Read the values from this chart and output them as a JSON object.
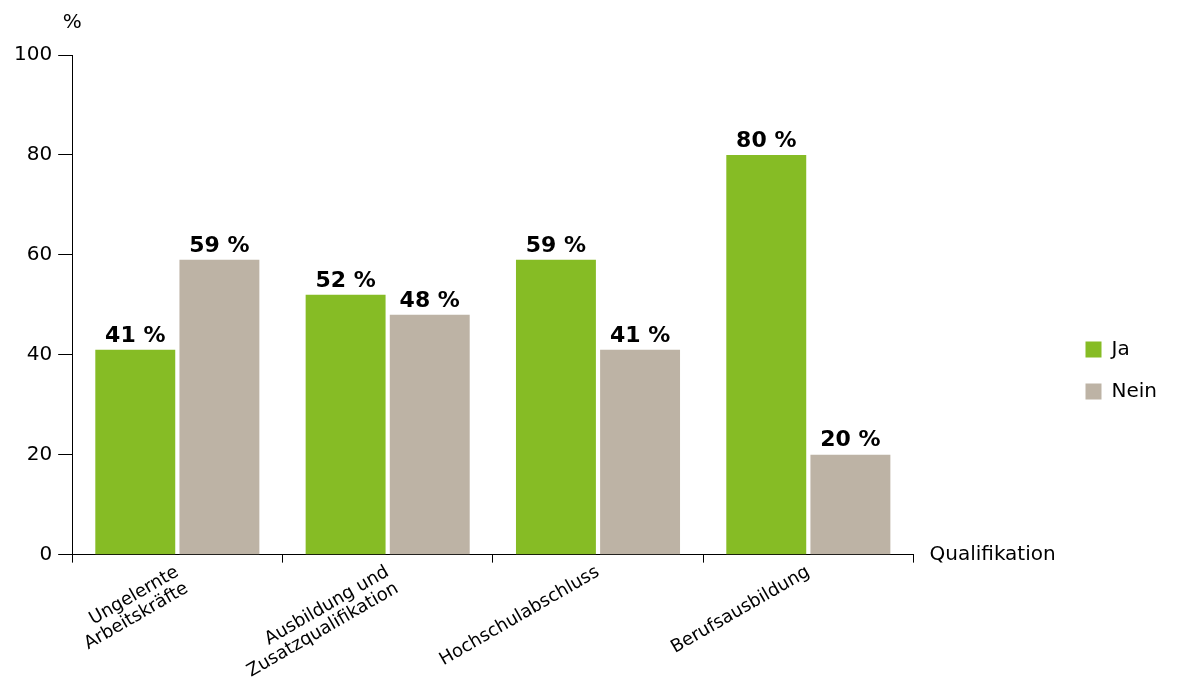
{
  "chart_data": {
    "type": "bar",
    "ylabel": "%",
    "xlabel": "Qualifikation",
    "categories": [
      "Ungelernte\nArbeitskräfte",
      "Ausbildung und\nZusatzqualifikation",
      "Hochschulabschluss",
      "Berufsausbildung"
    ],
    "series": [
      {
        "name": "Ja",
        "color": "#86bc25",
        "values": [
          41,
          52,
          59,
          80
        ],
        "value_labels": [
          "41 %",
          "52 %",
          "59 %",
          "80 %"
        ]
      },
      {
        "name": "Nein",
        "color": "#bdb3a5",
        "values": [
          59,
          48,
          41,
          20
        ],
        "value_labels": [
          "59 %",
          "48 %",
          "41 %",
          "20 %"
        ]
      }
    ],
    "ylim": [
      0,
      100
    ],
    "yticks": [
      0,
      20,
      40,
      60,
      80,
      100
    ],
    "grid": false,
    "legend": "right"
  }
}
